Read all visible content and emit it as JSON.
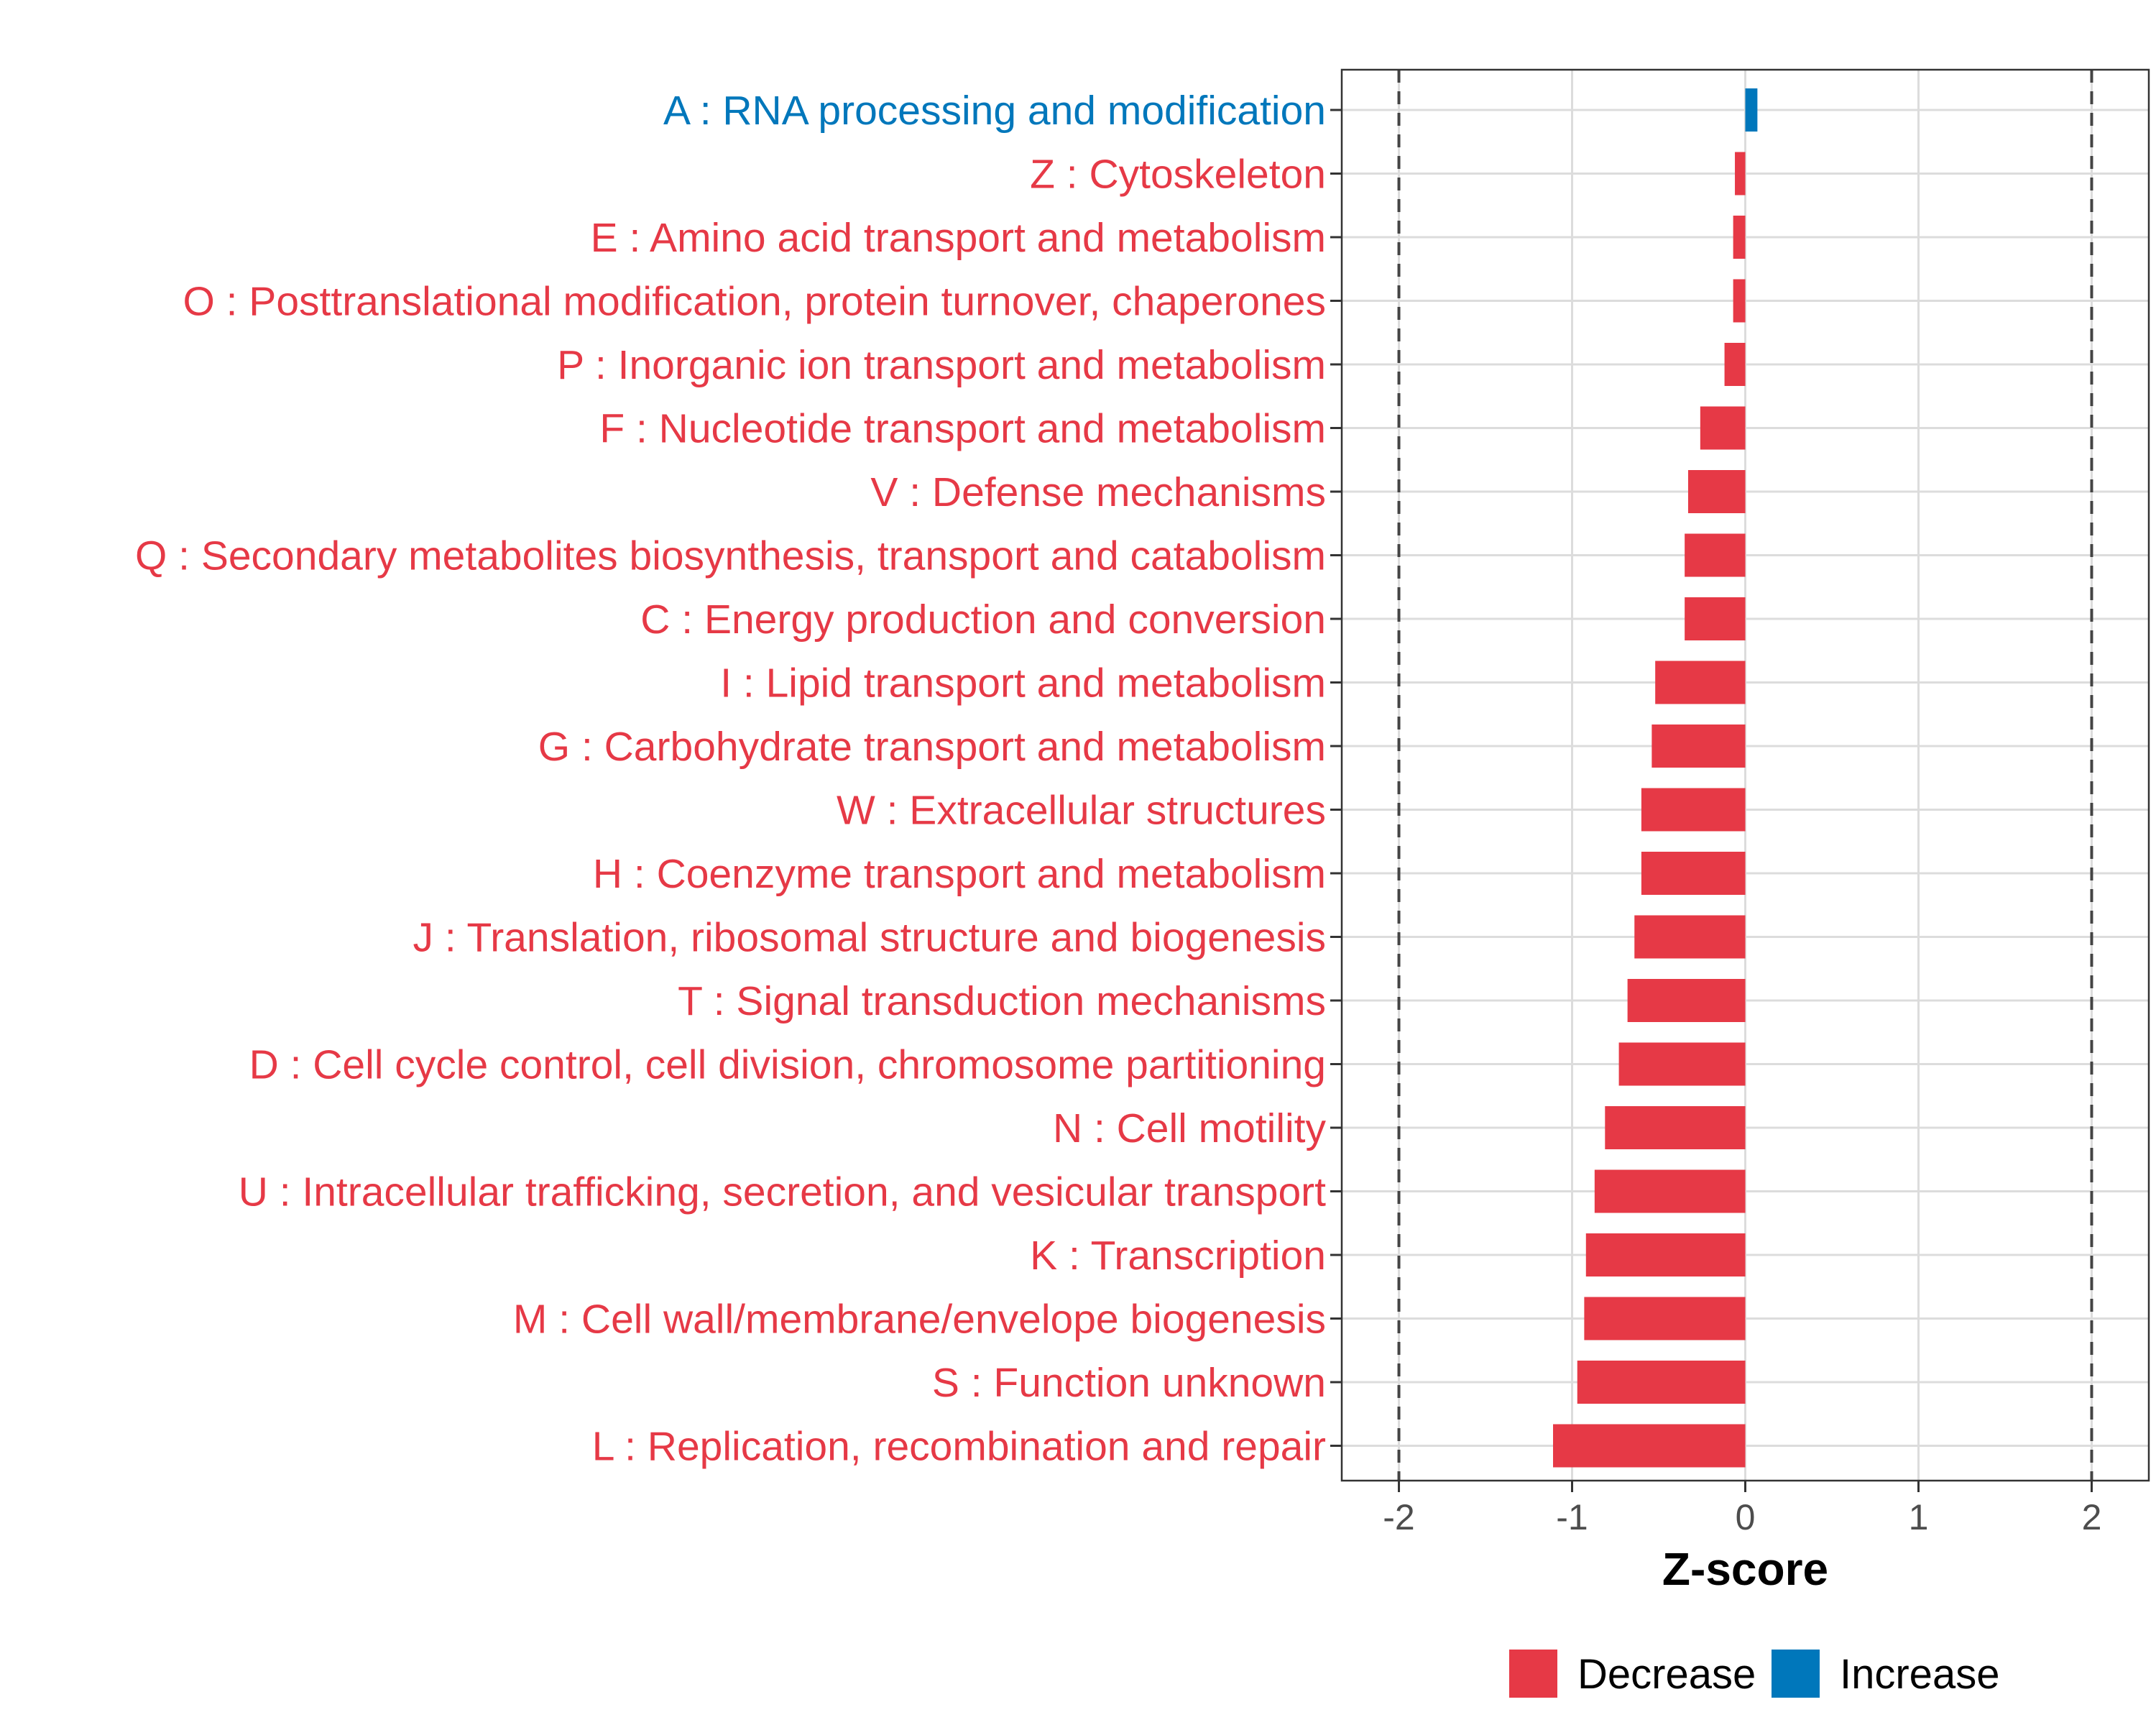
{
  "chart_data": {
    "type": "bar",
    "orientation": "horizontal",
    "title": "",
    "xlabel": "Z-score",
    "ylabel": "",
    "xlim": [
      -2.33,
      2.33
    ],
    "xticks": [
      -2,
      -1,
      0,
      1,
      2
    ],
    "xtick_labels": [
      "-2",
      "-1",
      "0",
      "1",
      "2"
    ],
    "threshold_lines": [
      -2,
      2
    ],
    "grid": true,
    "colors": {
      "Decrease": "#E63946",
      "Increase": "#0077BB"
    },
    "legend": {
      "position": "bottom",
      "entries": [
        {
          "name": "Decrease",
          "color": "#E63946"
        },
        {
          "name": "Increase",
          "color": "#0077BB"
        }
      ]
    },
    "bars": [
      {
        "label": "A : RNA processing and modification",
        "value": 0.07,
        "direction": "Increase"
      },
      {
        "label": "Z : Cytoskeleton",
        "value": -0.06,
        "direction": "Decrease"
      },
      {
        "label": "E : Amino acid transport and metabolism",
        "value": -0.07,
        "direction": "Decrease"
      },
      {
        "label": "O : Posttranslational modification, protein turnover, chaperones",
        "value": -0.07,
        "direction": "Decrease"
      },
      {
        "label": "P : Inorganic ion transport and metabolism",
        "value": -0.12,
        "direction": "Decrease"
      },
      {
        "label": "F : Nucleotide transport and metabolism",
        "value": -0.26,
        "direction": "Decrease"
      },
      {
        "label": "V : Defense mechanisms",
        "value": -0.33,
        "direction": "Decrease"
      },
      {
        "label": "Q : Secondary metabolites biosynthesis, transport and catabolism",
        "value": -0.35,
        "direction": "Decrease"
      },
      {
        "label": "C : Energy production and conversion",
        "value": -0.35,
        "direction": "Decrease"
      },
      {
        "label": "I : Lipid transport and metabolism",
        "value": -0.52,
        "direction": "Decrease"
      },
      {
        "label": "G : Carbohydrate transport and metabolism",
        "value": -0.54,
        "direction": "Decrease"
      },
      {
        "label": "W : Extracellular structures",
        "value": -0.6,
        "direction": "Decrease"
      },
      {
        "label": "H : Coenzyme transport and metabolism",
        "value": -0.6,
        "direction": "Decrease"
      },
      {
        "label": "J : Translation, ribosomal structure and biogenesis",
        "value": -0.64,
        "direction": "Decrease"
      },
      {
        "label": "T : Signal transduction mechanisms",
        "value": -0.68,
        "direction": "Decrease"
      },
      {
        "label": "D : Cell cycle control, cell division, chromosome partitioning",
        "value": -0.73,
        "direction": "Decrease"
      },
      {
        "label": "N : Cell motility",
        "value": -0.81,
        "direction": "Decrease"
      },
      {
        "label": "U : Intracellular trafficking, secretion, and vesicular transport",
        "value": -0.87,
        "direction": "Decrease"
      },
      {
        "label": "K : Transcription",
        "value": -0.92,
        "direction": "Decrease"
      },
      {
        "label": "M : Cell wall/membrane/envelope biogenesis",
        "value": -0.93,
        "direction": "Decrease"
      },
      {
        "label": "S : Function unknown",
        "value": -0.97,
        "direction": "Decrease"
      },
      {
        "label": "L : Replication, recombination and repair",
        "value": -1.11,
        "direction": "Decrease"
      }
    ]
  }
}
